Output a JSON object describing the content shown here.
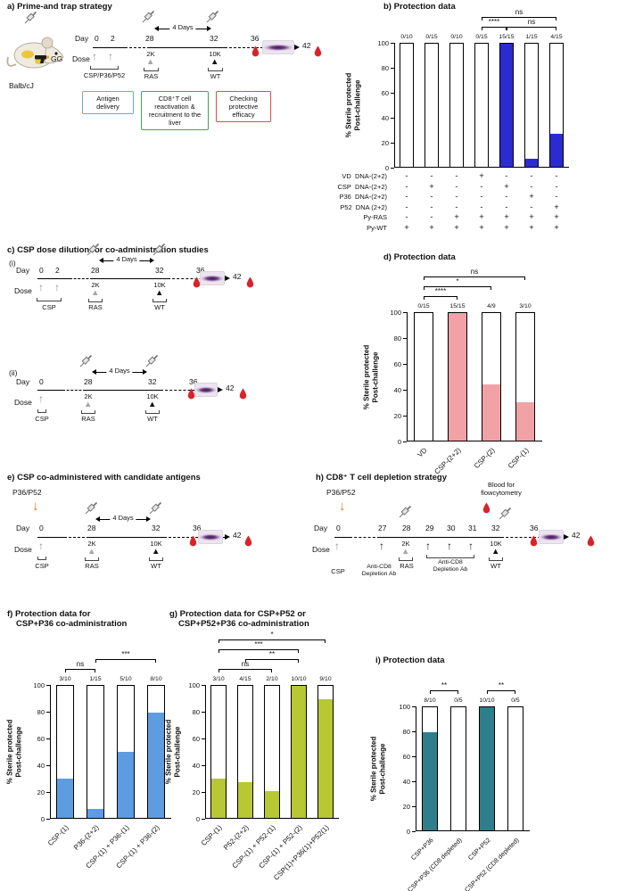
{
  "icons": {
    "up_arrow": "↑",
    "down_arrow": "↓",
    "triangle": "▲"
  },
  "panels": {
    "a": {
      "heading": "a) Prime-and trap strategy",
      "balb": "Balb/cJ",
      "gg": "GG",
      "day": "Day",
      "dose": "Dose",
      "days": [
        "0",
        "2",
        "28",
        "32",
        "36",
        "42"
      ],
      "interval": "4 Days",
      "prime": "CSP/P36/P52",
      "ras_dose": "2K",
      "ras": "RAS",
      "wt_dose": "10K",
      "wt": "WT",
      "box_antigen": "Antigen delivery",
      "box_cd8": "CD8⁺T cell reactivation & recruitment to the liver",
      "box_check": "Checking protective efficacy"
    },
    "b": {
      "heading": "b) Protection data",
      "matrix": [
        {
          "label": "VD  DNA-(2+2)",
          "cells": [
            "-",
            "-",
            "-",
            "+",
            "-",
            "-",
            "-"
          ]
        },
        {
          "label": "CSP  DNA-(2+2)",
          "cells": [
            "-",
            "+",
            "-",
            "-",
            "+",
            "-",
            "-"
          ]
        },
        {
          "label": "P36  DNA-(2+2)",
          "cells": [
            "-",
            "-",
            "-",
            "-",
            "-",
            "+",
            "-"
          ]
        },
        {
          "label": "P52  DNA (2+2)",
          "cells": [
            "-",
            "-",
            "-",
            "-",
            "-",
            "-",
            "+"
          ]
        },
        {
          "label": "Py-RAS",
          "cells": [
            "-",
            "-",
            "+",
            "+",
            "+",
            "+",
            "+"
          ]
        },
        {
          "label": "Py-WT",
          "cells": [
            "+",
            "+",
            "+",
            "+",
            "+",
            "+",
            "+"
          ]
        }
      ]
    },
    "c": {
      "heading": "c) CSP dose dilution for co-administration studies",
      "sub_i": "(i)",
      "sub_ii": "(ii)",
      "day": "Day",
      "dose": "Dose",
      "interval": "4 Days",
      "csp": "CSP",
      "ras_dose": "2K",
      "ras": "RAS",
      "wt_dose": "10K",
      "wt": "WT",
      "i_days": [
        "0",
        "2",
        "28",
        "32",
        "36",
        "42"
      ],
      "ii_days": [
        "0",
        "28",
        "32",
        "36",
        "42"
      ]
    },
    "d": {
      "heading": "d) Protection data"
    },
    "e": {
      "heading": "e) CSP co-administered with candidate antigens",
      "p36p52": "P36/P52",
      "day": "Day",
      "dose": "Dose",
      "interval": "4 Days",
      "csp": "CSP",
      "ras_dose": "2K",
      "ras": "RAS",
      "wt_dose": "10K",
      "wt": "WT",
      "days": [
        "0",
        "28",
        "32",
        "36",
        "42"
      ]
    },
    "f": {
      "heading_line1": "f) Protection data for",
      "heading_line2": "CSP+P36 co-administration"
    },
    "g": {
      "heading_line1": "g) Protection data for CSP+P52 or",
      "heading_line2": "CSP+P52+P36 co-administration"
    },
    "h": {
      "heading": "h) CD8⁺ T cell depletion strategy",
      "p36p52": "P36/P52",
      "blood_line1": "Blood for",
      "blood_line2": "flowcytometry",
      "day": "Day",
      "dose": "Dose",
      "days": [
        "0",
        "27",
        "28",
        "29",
        "30",
        "31",
        "32",
        "36",
        "42"
      ],
      "csp": "CSP",
      "anti_cd8_1": "Anti-CD8 Depletion Ab",
      "anti_cd8_2": "Anti-CD8 Depletion Ab",
      "ras_dose": "2K",
      "ras": "RAS",
      "wt_dose": "10K",
      "wt": "WT"
    },
    "i": {
      "heading": "i) Protection data"
    }
  },
  "chart_data": [
    {
      "id": "b",
      "type": "bar",
      "title": "Protection data",
      "ylabel": [
        "% Sterile protected",
        "Post-challenge"
      ],
      "ylim": [
        0,
        100
      ],
      "yticks": [
        0,
        20,
        40,
        60,
        80,
        100
      ],
      "values": [
        0,
        0,
        0,
        0,
        100,
        6.7,
        26.7
      ],
      "n_labels": [
        "0/10",
        "0/15",
        "0/10",
        "0/15",
        "15/15",
        "1/15",
        "4/15"
      ],
      "bar_color": "#2b2bd0",
      "comparisons": [
        {
          "from": 3,
          "to": 6,
          "label": "ns",
          "row": 0
        },
        {
          "from": 3,
          "to": 4,
          "label": "****",
          "row": 1
        },
        {
          "from": 4,
          "to": 6,
          "label": "ns",
          "row": 1
        }
      ]
    },
    {
      "id": "d",
      "type": "bar",
      "title": "Protection data",
      "ylabel": [
        "% Sterile protected",
        "Post-challenge"
      ],
      "ylim": [
        0,
        100
      ],
      "yticks": [
        0,
        20,
        40,
        60,
        80,
        100
      ],
      "categories": [
        "VD",
        "CSP-(2+2)",
        "CSP-(2)",
        "CSP-(1)"
      ],
      "values": [
        0,
        100,
        44,
        30
      ],
      "n_labels": [
        "0/15",
        "15/15",
        "4/9",
        "3/10"
      ],
      "bar_color": "#f0a2a6",
      "comparisons": [
        {
          "from": 0,
          "to": 3,
          "label": "ns",
          "row": 0
        },
        {
          "from": 0,
          "to": 2,
          "label": "*",
          "row": 1
        },
        {
          "from": 0,
          "to": 1,
          "label": "****",
          "row": 2
        }
      ]
    },
    {
      "id": "f",
      "type": "bar",
      "title": "Protection data for CSP+P36 co-administration",
      "ylabel": [
        "% Sterile protected",
        "Post-challenge"
      ],
      "ylim": [
        0,
        100
      ],
      "yticks": [
        0,
        20,
        40,
        60,
        80,
        100
      ],
      "categories": [
        "CSP-(1)",
        "P36-(2+2)",
        "CSP-(1) + P36-(1)",
        "CSP-(1) + P36-(2)"
      ],
      "values": [
        30,
        6.7,
        50,
        80
      ],
      "n_labels": [
        "3/10",
        "1/15",
        "5/10",
        "8/10"
      ],
      "bar_color": "#5e9ce2",
      "comparisons": [
        {
          "from": 1,
          "to": 3,
          "label": "***",
          "row": 0
        },
        {
          "from": 0,
          "to": 1,
          "label": "ns",
          "row": 1
        }
      ]
    },
    {
      "id": "g",
      "type": "bar",
      "title": "Protection data for CSP+P52 or CSP+P52+P36 co-administration",
      "ylabel": [
        "% Sterile protected",
        "Post-challenge"
      ],
      "ylim": [
        0,
        100
      ],
      "yticks": [
        0,
        20,
        40,
        60,
        80,
        100
      ],
      "categories": [
        "CSP-(1)",
        "P52-(2+2)",
        "CSP-(1) + P52-(1)",
        "CSP-(1) + P52-(2)",
        "CSP(1)+P36(1)+P52(1)"
      ],
      "values": [
        30,
        26.7,
        20,
        100,
        90
      ],
      "n_labels": [
        "3/10",
        "4/15",
        "2/10",
        "10/10",
        "9/10"
      ],
      "bar_color": "#b7c832",
      "comparisons": [
        {
          "from": 0,
          "to": 4,
          "label": "*",
          "row": 0
        },
        {
          "from": 0,
          "to": 3,
          "label": "***",
          "row": 1
        },
        {
          "from": 1,
          "to": 3,
          "label": "**",
          "row": 2
        },
        {
          "from": 0,
          "to": 2,
          "label": "ns",
          "row": 3
        }
      ]
    },
    {
      "id": "i",
      "type": "bar",
      "title": "Protection data",
      "ylabel": [
        "% Sterile protected",
        "Post-challenge"
      ],
      "ylim": [
        0,
        100
      ],
      "yticks": [
        0,
        20,
        40,
        60,
        80,
        100
      ],
      "categories": [
        "CSP+P36",
        "CSP+P36 (CD8 depleted)",
        "CSP+P52",
        "CSP+P52 (CD8 depleted)"
      ],
      "values": [
        80,
        0,
        100,
        0
      ],
      "n_labels": [
        "8/10",
        "0/5",
        "10/10",
        "0/5"
      ],
      "bar_color": "#2e7e8b",
      "comparisons": [
        {
          "from": 0,
          "to": 1,
          "label": "**",
          "row": 0
        },
        {
          "from": 2,
          "to": 3,
          "label": "**",
          "row": 0
        }
      ]
    }
  ]
}
